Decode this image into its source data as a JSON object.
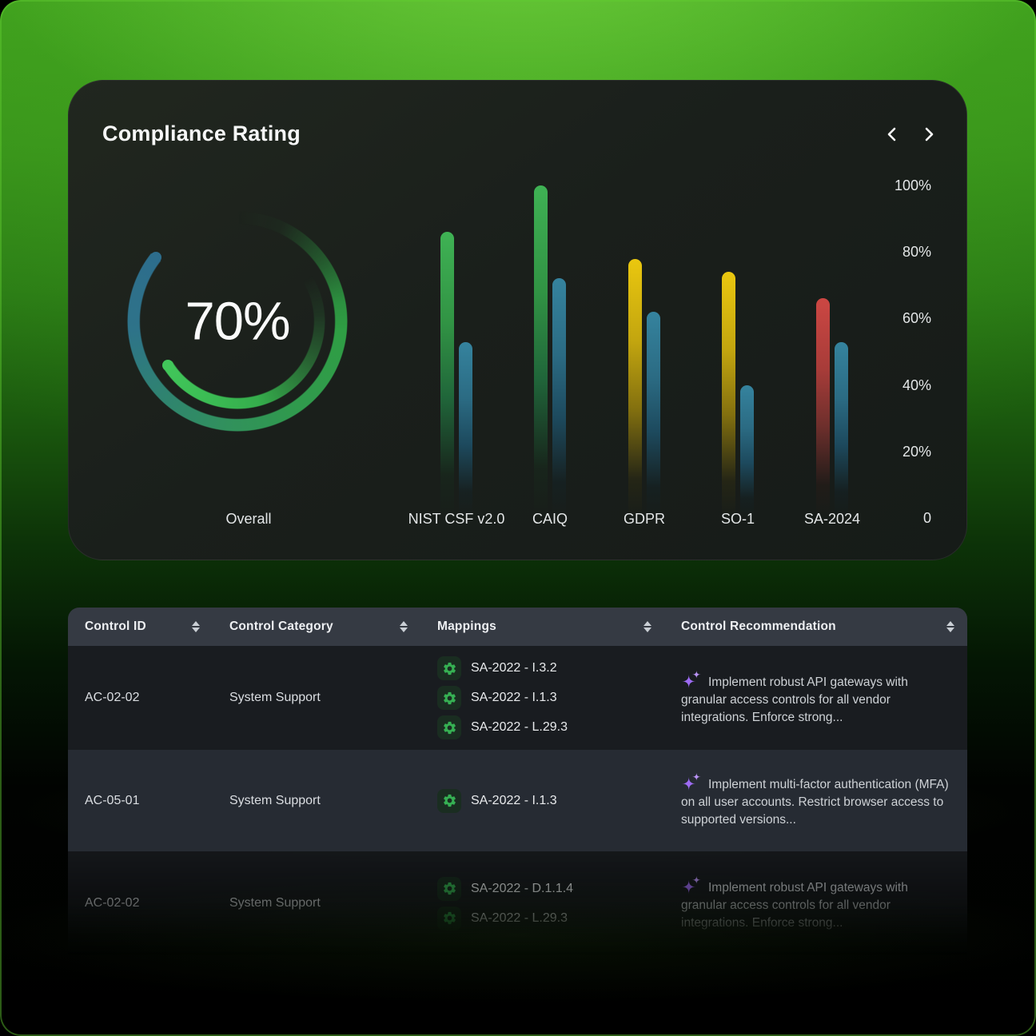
{
  "card": {
    "title": "Compliance Rating",
    "donut": {
      "value_label": "70%"
    },
    "icons": {
      "prev": "chevron-left-icon",
      "next": "chevron-right-icon"
    }
  },
  "chart_data": {
    "type": "bar",
    "title": "Compliance Rating",
    "overall_label": "Overall",
    "overall_percent": 70,
    "categories": [
      "NIST CSF v2.0",
      "CAIQ",
      "GDPR",
      "SO-1",
      "SA-2024"
    ],
    "series": [
      {
        "name": "framework-score",
        "values": [
          86,
          100,
          78,
          74,
          66
        ],
        "bar_colors": [
          "green",
          "green",
          "yellow",
          "yellow",
          "red"
        ]
      },
      {
        "name": "secondary-score",
        "values": [
          53,
          72,
          62,
          40,
          53
        ],
        "bar_colors": [
          "teal",
          "teal",
          "teal",
          "teal",
          "teal"
        ]
      }
    ],
    "ylim": [
      0,
      100
    ],
    "y_tick_values": [
      100,
      80,
      60,
      40,
      20,
      0
    ],
    "y_tick_labels": [
      "100%",
      "80%",
      "60%",
      "40%",
      "20%",
      "0"
    ],
    "grid": false,
    "legend": false
  },
  "colors": {
    "bar_green": "#3fb254",
    "bar_teal": "#35839e",
    "bar_yellow": "#eac70f",
    "bar_red": "#cc4743",
    "donut_teal": "#2d6d8c",
    "donut_green": "#2f9e44",
    "donut_bright_green": "#41c65a",
    "gear_green": "#36b053",
    "sparkle_purple": "#9d6bf3",
    "background_green": "#3f9f1d"
  },
  "table": {
    "columns": [
      {
        "label": "Control ID",
        "sortable": true
      },
      {
        "label": "Control Category",
        "sortable": true
      },
      {
        "label": "Mappings",
        "sortable": true
      },
      {
        "label": "Control Recommendation",
        "sortable": true
      }
    ],
    "rows": [
      {
        "control_id": "AC-02-02",
        "control_category": "System Support",
        "mappings": [
          "SA-2022 - I.3.2",
          "SA-2022 - I.1.3",
          "SA-2022 - L.29.3"
        ],
        "recommendation": "Implement robust API gateways with granular access controls for all vendor integrations. Enforce strong...",
        "faded": false
      },
      {
        "control_id": "AC-05-01",
        "control_category": "System Support",
        "mappings": [
          "SA-2022 - I.1.3"
        ],
        "recommendation": "Implement multi-factor authentication (MFA) on all user accounts. Restrict browser access to supported versions...",
        "faded": false
      },
      {
        "control_id": "AC-02-02",
        "control_category": "System Support",
        "mappings": [
          "SA-2022 - D.1.1.4",
          "SA-2022 - L.29.3"
        ],
        "recommendation": "Implement robust API gateways with granular access controls for all vendor integrations. Enforce strong...",
        "faded": true
      }
    ]
  }
}
